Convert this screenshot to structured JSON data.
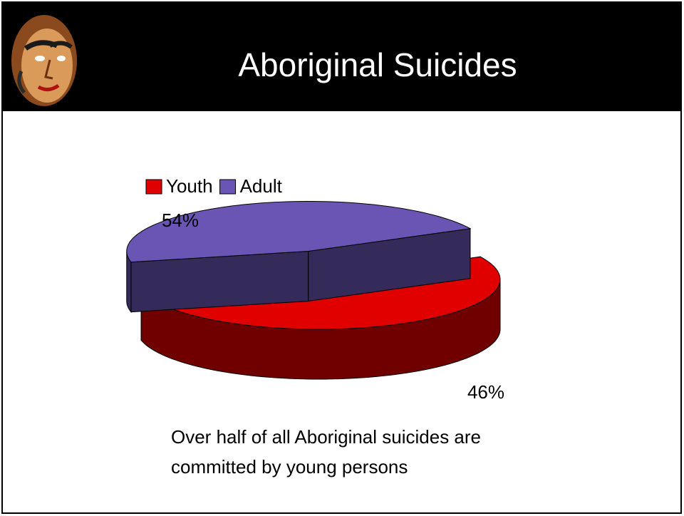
{
  "chart_data": {
    "type": "pie",
    "title": "Aboriginal Suicides",
    "categories": [
      "Youth",
      "Adult"
    ],
    "values": [
      54,
      46
    ],
    "value_labels": [
      "54%",
      "46%"
    ],
    "colors": [
      "#e00000",
      "#6a55b4"
    ],
    "annotation": "Over half of all Aboriginal suicides are committed by young persons"
  }
}
